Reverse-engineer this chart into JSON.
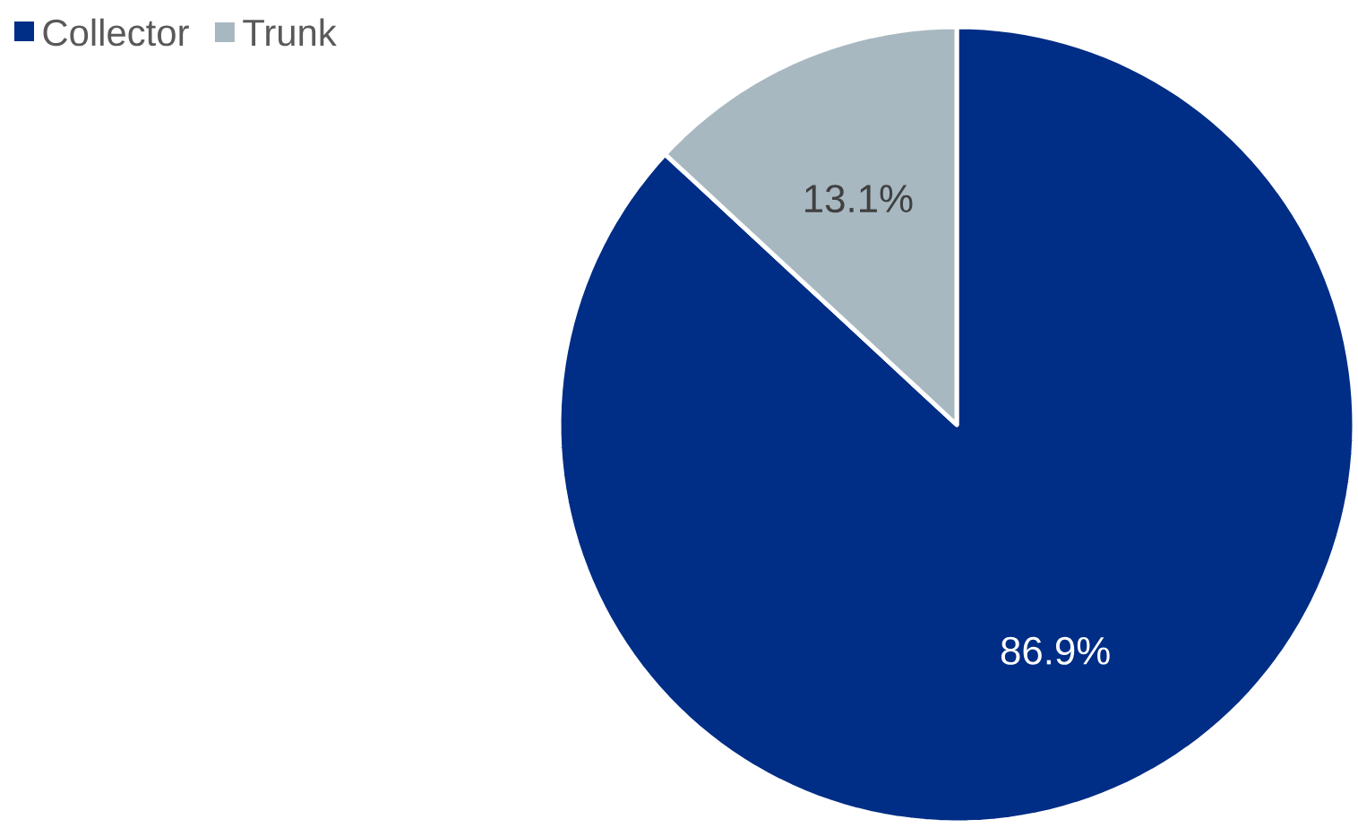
{
  "chart_data": {
    "type": "pie",
    "categories": [
      "Collector",
      "Trunk"
    ],
    "values": [
      86.9,
      13.1
    ],
    "colors": [
      "#002d86",
      "#a8b8c1"
    ],
    "value_labels": [
      "86.9%",
      "13.1%"
    ],
    "legend": "top left"
  }
}
